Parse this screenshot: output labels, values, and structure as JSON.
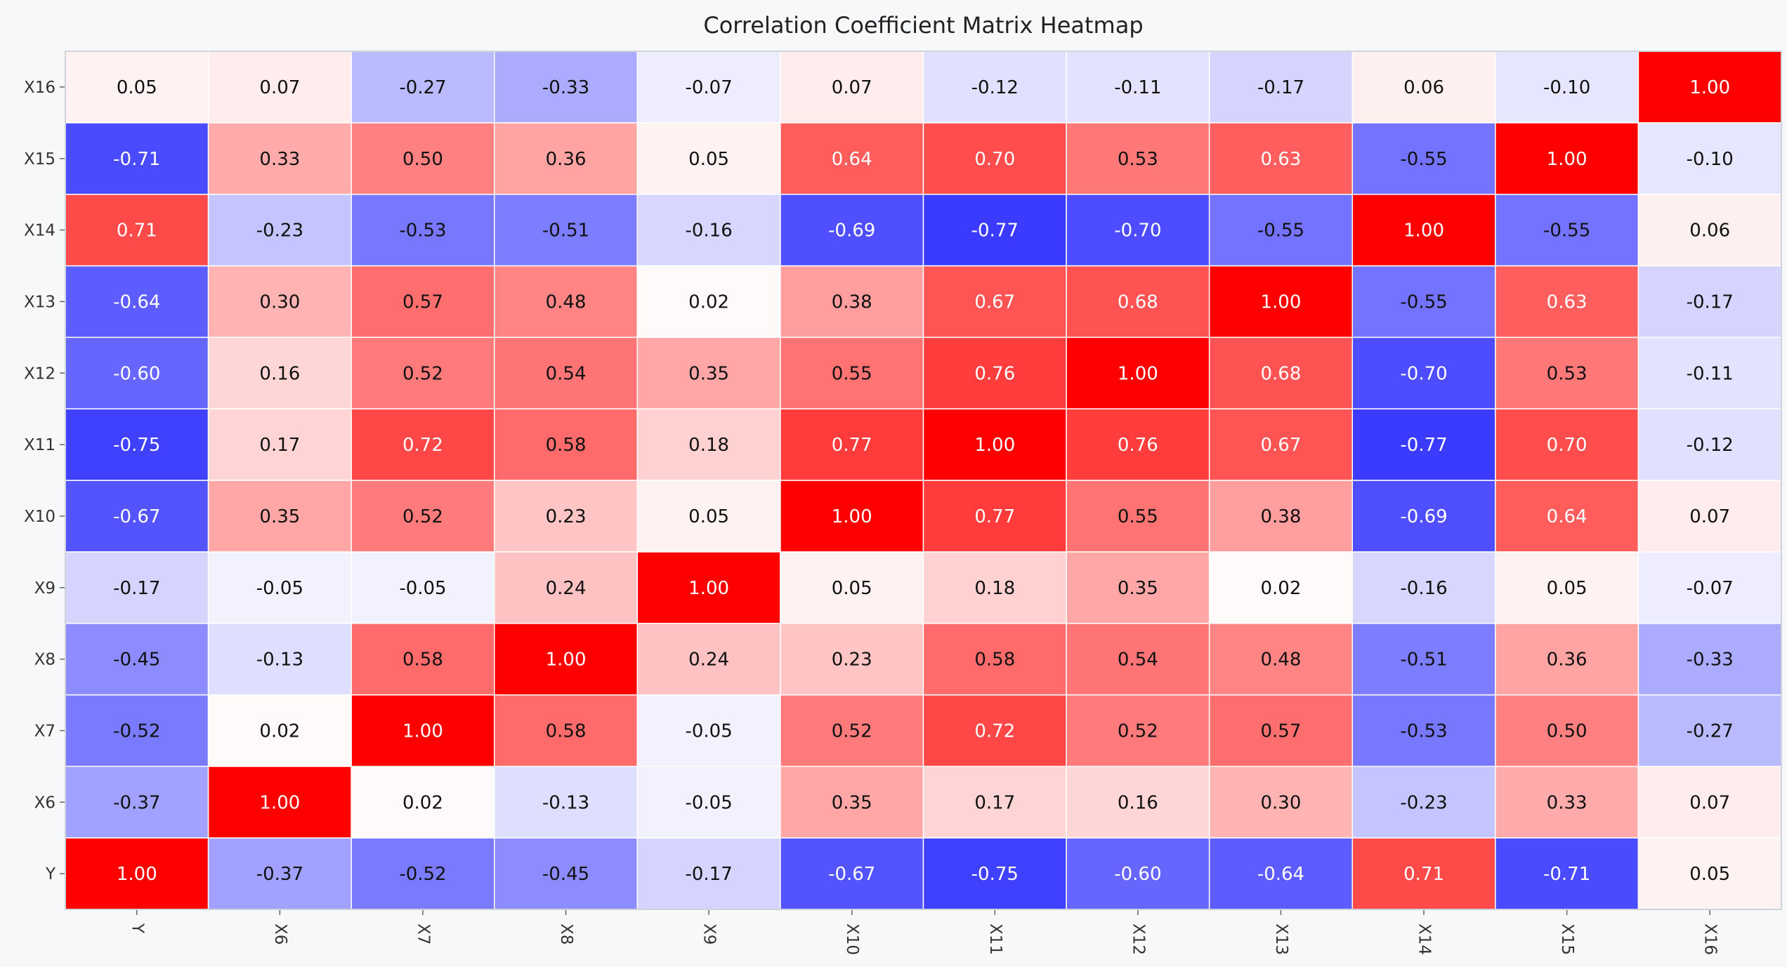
{
  "chart_data": {
    "type": "heatmap",
    "title": "Correlation Coefficient Matrix Heatmap",
    "xlabel": "",
    "ylabel": "",
    "x_categories": [
      "Y",
      "X6",
      "X7",
      "X8",
      "X9",
      "X10",
      "X11",
      "X12",
      "X13",
      "X14",
      "X15",
      "X16"
    ],
    "y_categories": [
      "Y",
      "X6",
      "X7",
      "X8",
      "X9",
      "X10",
      "X11",
      "X12",
      "X13",
      "X14",
      "X15",
      "X16"
    ],
    "value_range": [
      -1,
      1
    ],
    "color_scale": {
      "low": "#0000ff",
      "mid": "#ffffff",
      "high": "#ff0000"
    },
    "values": [
      [
        1.0,
        -0.37,
        -0.52,
        -0.45,
        -0.17,
        -0.67,
        -0.75,
        -0.6,
        -0.64,
        0.71,
        -0.71,
        0.05
      ],
      [
        -0.37,
        1.0,
        0.02,
        -0.13,
        -0.05,
        0.35,
        0.17,
        0.16,
        0.3,
        -0.23,
        0.33,
        0.07
      ],
      [
        -0.52,
        0.02,
        1.0,
        0.58,
        -0.05,
        0.52,
        0.72,
        0.52,
        0.57,
        -0.53,
        0.5,
        -0.27
      ],
      [
        -0.45,
        -0.13,
        0.58,
        1.0,
        0.24,
        0.23,
        0.58,
        0.54,
        0.48,
        -0.51,
        0.36,
        -0.33
      ],
      [
        -0.17,
        -0.05,
        -0.05,
        0.24,
        1.0,
        0.05,
        0.18,
        0.35,
        0.02,
        -0.16,
        0.05,
        -0.07
      ],
      [
        -0.67,
        0.35,
        0.52,
        0.23,
        0.05,
        1.0,
        0.77,
        0.55,
        0.38,
        -0.69,
        0.64,
        0.07
      ],
      [
        -0.75,
        0.17,
        0.72,
        0.58,
        0.18,
        0.77,
        1.0,
        0.76,
        0.67,
        -0.77,
        0.7,
        -0.12
      ],
      [
        -0.6,
        0.16,
        0.52,
        0.54,
        0.35,
        0.55,
        0.76,
        1.0,
        0.68,
        -0.7,
        0.53,
        -0.11
      ],
      [
        -0.64,
        0.3,
        0.57,
        0.48,
        0.02,
        0.38,
        0.67,
        0.68,
        1.0,
        -0.55,
        0.63,
        -0.17
      ],
      [
        0.71,
        -0.23,
        -0.53,
        -0.51,
        -0.16,
        -0.69,
        -0.77,
        -0.7,
        -0.55,
        1.0,
        -0.55,
        0.06
      ],
      [
        -0.71,
        0.33,
        0.5,
        0.36,
        0.05,
        0.64,
        0.7,
        0.53,
        0.63,
        -0.55,
        1.0,
        -0.1
      ],
      [
        0.05,
        0.07,
        -0.27,
        -0.33,
        -0.07,
        0.07,
        -0.12,
        -0.11,
        -0.17,
        0.06,
        -0.1,
        1.0
      ]
    ],
    "grid": true,
    "legend": "none"
  }
}
